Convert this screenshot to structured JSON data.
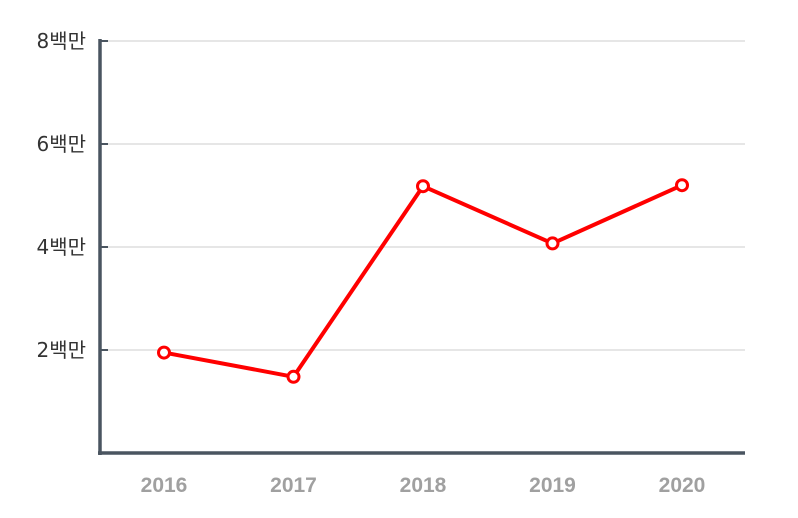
{
  "chart_data": {
    "type": "line",
    "title": "",
    "xlabel": "",
    "ylabel": "",
    "categories": [
      "2016",
      "2017",
      "2018",
      "2019",
      "2020"
    ],
    "series": [
      {
        "values": [
          1.95,
          1.48,
          5.18,
          4.07,
          5.2
        ]
      }
    ],
    "ylim": [
      0,
      8
    ],
    "yticks": [
      {
        "value": 2,
        "label": "2백만"
      },
      {
        "value": 4,
        "label": "4백만"
      },
      {
        "value": 6,
        "label": "6백만"
      },
      {
        "value": 8,
        "label": "8백만"
      }
    ],
    "grid": true,
    "legend": "none",
    "colors": {
      "line": "#ff0000",
      "grid": "#dddddd",
      "axis": "#4a5560"
    }
  }
}
